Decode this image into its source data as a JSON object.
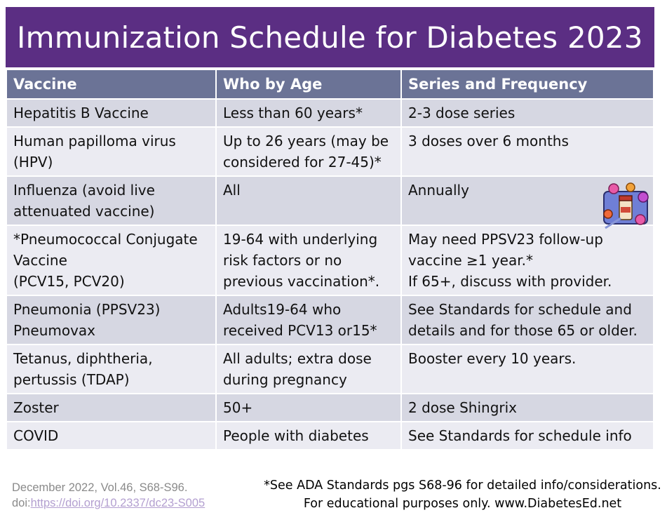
{
  "title": "Immunization Schedule for Diabetes 2023",
  "table": {
    "headers": [
      "Vaccine",
      "Who by Age",
      "Series and Frequency"
    ],
    "rows": [
      {
        "vaccine": [
          "Hepatitis B Vaccine"
        ],
        "age": [
          "Less than 60 years*"
        ],
        "series": [
          "2-3 dose series"
        ]
      },
      {
        "vaccine": [
          "Human papilloma virus",
          "(HPV)"
        ],
        "age": [
          "Up to 26 years (may be",
          "considered for 27-45)*"
        ],
        "series": [
          "3 doses over 6 months"
        ]
      },
      {
        "vaccine": [
          "Influenza (avoid live",
          "attenuated vaccine)"
        ],
        "age": [
          "All"
        ],
        "series": [
          "Annually"
        ]
      },
      {
        "vaccine": [
          "*Pneumococcal Conjugate",
          "Vaccine",
          "(PCV15, PCV20)"
        ],
        "age": [
          "19-64 with underlying",
          "risk factors or no",
          "previous vaccination*."
        ],
        "series": [
          "May need PPSV23 follow-up",
          "vaccine ≥1 year.*",
          "If 65+, discuss with provider."
        ]
      },
      {
        "vaccine": [
          "Pneumonia (PPSV23)",
          "Pneumovax"
        ],
        "age": [
          "Adults19-64 who",
          "received PCV13 or15*"
        ],
        "series": [
          "See Standards for schedule and",
          "details and for those 65 or older."
        ]
      },
      {
        "vaccine": [
          "Tetanus, diphtheria,",
          "pertussis (TDAP)"
        ],
        "age": [
          "All adults; extra dose",
          "during pregnancy"
        ],
        "series": [
          "Booster every 10 years."
        ]
      },
      {
        "vaccine": [
          "Zoster"
        ],
        "age": [
          "50+"
        ],
        "series": [
          "2 dose Shingrix"
        ]
      },
      {
        "vaccine": [
          "COVID"
        ],
        "age": [
          "People with diabetes"
        ],
        "series": [
          "See Standards for schedule info"
        ]
      }
    ]
  },
  "footer": {
    "citation_line1": "December 2022, Vol.46, S68-S96.",
    "citation_prefix": "doi:",
    "citation_link": "https://doi.org/10.2337/dc23-S005",
    "note_line1": "*See ADA Standards pgs S68-96 for detailed info/considerations.",
    "note_line2": "For educational purposes only.  www.DiabetesEd.net"
  },
  "colors": {
    "title_bg": "#5b2e83",
    "header_bg": "#6b7396",
    "row_odd": "#d6d7e2",
    "row_even": "#ebebf2",
    "link": "#b39fd0"
  },
  "icons": {
    "influenza_art": "vaccine-vial-virus-clipart"
  }
}
